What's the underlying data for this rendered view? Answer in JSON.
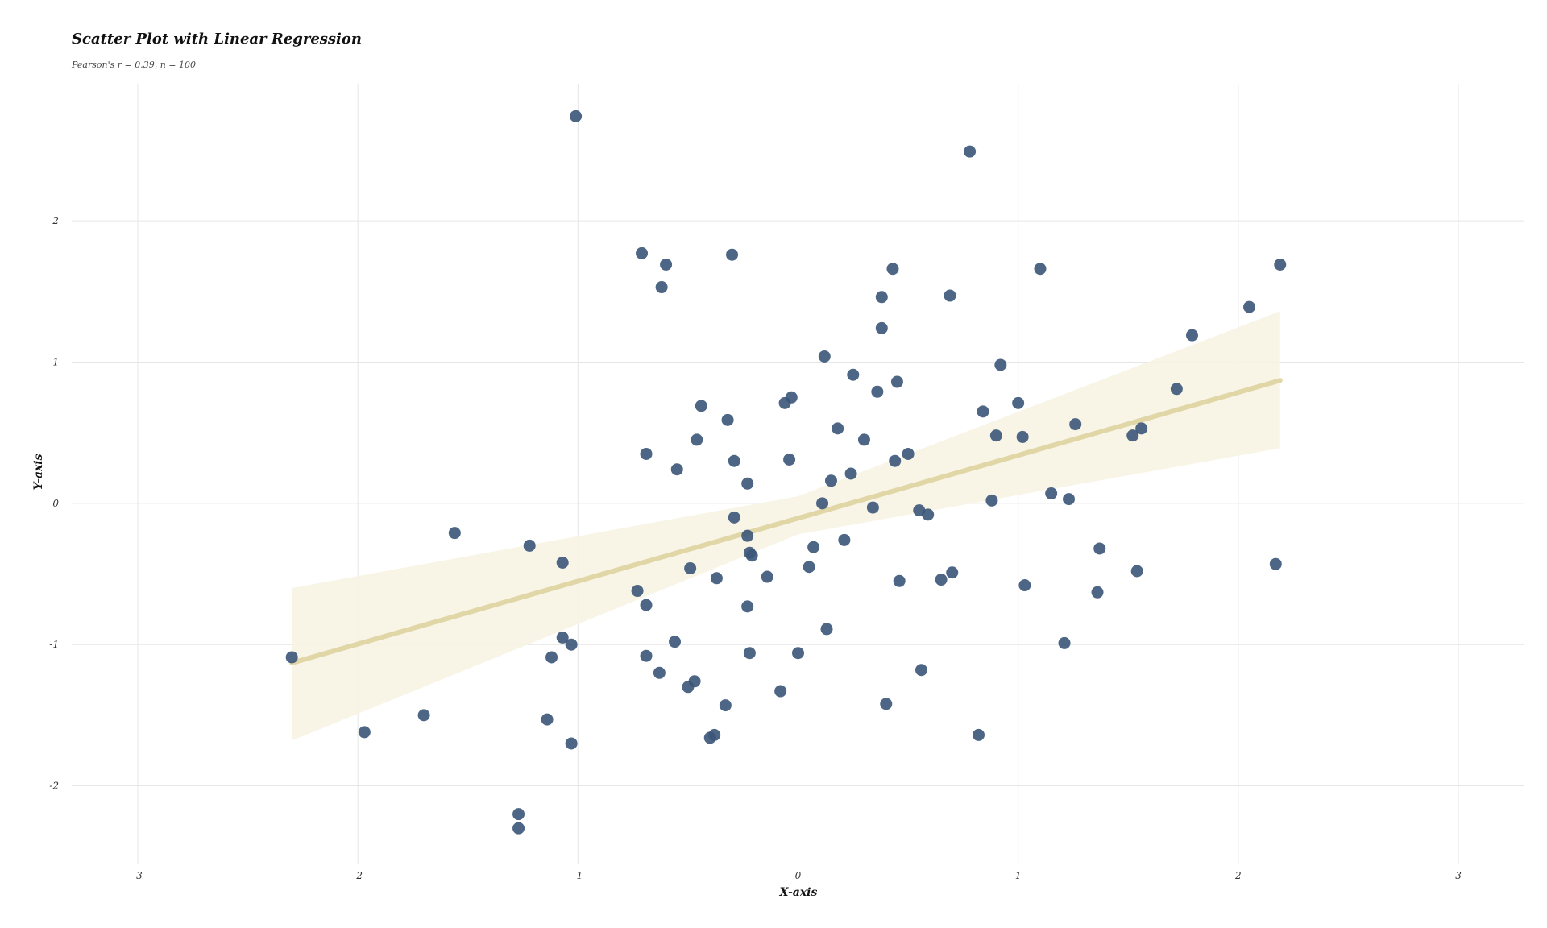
{
  "chart_data": {
    "type": "scatter",
    "title": "Scatter Plot with Linear Regression",
    "subtitle": "Pearson's r = 0.39, n = 100",
    "xlabel": "X-axis",
    "ylabel": "Y-axis",
    "xlim": [
      -3.3,
      3.3
    ],
    "ylim": [
      -2.55,
      2.97
    ],
    "xticks": [
      -3,
      -2,
      -1,
      0,
      1,
      2,
      3
    ],
    "yticks": [
      -2,
      -1,
      0,
      1,
      2
    ],
    "grid": true,
    "colors": {
      "points": "#3b5578",
      "regression_line": "#e0d6a6",
      "confidence_band": "#f7f3e3"
    },
    "regression": {
      "x_range": [
        -2.3,
        2.19
      ],
      "line": [
        [
          -2.3,
          -1.13
        ],
        [
          2.19,
          0.87
        ]
      ],
      "band_upper": [
        [
          -2.3,
          -0.6
        ],
        [
          0.0,
          0.05
        ],
        [
          2.19,
          1.36
        ]
      ],
      "band_lower": [
        [
          -2.3,
          -1.68
        ],
        [
          0.0,
          -0.22
        ],
        [
          2.19,
          0.39
        ]
      ]
    },
    "points": [
      [
        -1.01,
        2.74
      ],
      [
        0.78,
        2.49
      ],
      [
        -0.71,
        1.77
      ],
      [
        -0.3,
        1.76
      ],
      [
        -0.6,
        1.69
      ],
      [
        -0.62,
        1.53
      ],
      [
        0.43,
        1.66
      ],
      [
        1.1,
        1.66
      ],
      [
        2.19,
        1.69
      ],
      [
        0.38,
        1.46
      ],
      [
        0.69,
        1.47
      ],
      [
        2.05,
        1.39
      ],
      [
        0.38,
        1.24
      ],
      [
        1.79,
        1.19
      ],
      [
        0.12,
        1.04
      ],
      [
        0.25,
        0.91
      ],
      [
        0.92,
        0.98
      ],
      [
        0.45,
        0.86
      ],
      [
        0.36,
        0.79
      ],
      [
        1.72,
        0.81
      ],
      [
        -0.03,
        0.75
      ],
      [
        -0.06,
        0.71
      ],
      [
        -0.44,
        0.69
      ],
      [
        -0.32,
        0.59
      ],
      [
        0.84,
        0.65
      ],
      [
        1.0,
        0.71
      ],
      [
        0.18,
        0.53
      ],
      [
        0.3,
        0.45
      ],
      [
        0.9,
        0.48
      ],
      [
        1.02,
        0.47
      ],
      [
        1.26,
        0.56
      ],
      [
        1.52,
        0.48
      ],
      [
        1.56,
        0.53
      ],
      [
        -0.46,
        0.45
      ],
      [
        -0.69,
        0.35
      ],
      [
        0.5,
        0.35
      ],
      [
        0.44,
        0.3
      ],
      [
        -0.04,
        0.31
      ],
      [
        -0.29,
        0.3
      ],
      [
        -0.55,
        0.24
      ],
      [
        0.24,
        0.21
      ],
      [
        0.15,
        0.16
      ],
      [
        -0.23,
        0.14
      ],
      [
        1.15,
        0.07
      ],
      [
        1.23,
        0.03
      ],
      [
        0.11,
        0.0
      ],
      [
        0.88,
        0.02
      ],
      [
        -1.56,
        -0.21
      ],
      [
        0.34,
        -0.03
      ],
      [
        0.55,
        -0.05
      ],
      [
        0.59,
        -0.08
      ],
      [
        -0.29,
        -0.1
      ],
      [
        -1.22,
        -0.3
      ],
      [
        -0.23,
        -0.23
      ],
      [
        0.21,
        -0.26
      ],
      [
        0.07,
        -0.31
      ],
      [
        -0.22,
        -0.35
      ],
      [
        -0.21,
        -0.37
      ],
      [
        1.37,
        -0.32
      ],
      [
        -1.07,
        -0.42
      ],
      [
        -0.49,
        -0.46
      ],
      [
        0.05,
        -0.45
      ],
      [
        2.17,
        -0.43
      ],
      [
        0.7,
        -0.49
      ],
      [
        1.54,
        -0.48
      ],
      [
        -0.37,
        -0.53
      ],
      [
        -0.14,
        -0.52
      ],
      [
        0.46,
        -0.55
      ],
      [
        0.65,
        -0.54
      ],
      [
        1.03,
        -0.58
      ],
      [
        -0.73,
        -0.62
      ],
      [
        1.36,
        -0.63
      ],
      [
        -0.69,
        -0.72
      ],
      [
        -0.23,
        -0.73
      ],
      [
        0.13,
        -0.89
      ],
      [
        -1.07,
        -0.95
      ],
      [
        -1.03,
        -1.0
      ],
      [
        -0.56,
        -0.98
      ],
      [
        1.21,
        -0.99
      ],
      [
        -2.3,
        -1.09
      ],
      [
        -1.12,
        -1.09
      ],
      [
        -0.69,
        -1.08
      ],
      [
        -0.22,
        -1.06
      ],
      [
        0.0,
        -1.06
      ],
      [
        -0.63,
        -1.2
      ],
      [
        0.56,
        -1.18
      ],
      [
        -0.47,
        -1.26
      ],
      [
        -0.5,
        -1.3
      ],
      [
        -0.08,
        -1.33
      ],
      [
        -0.33,
        -1.43
      ],
      [
        0.4,
        -1.42
      ],
      [
        -1.7,
        -1.5
      ],
      [
        -1.14,
        -1.53
      ],
      [
        -1.97,
        -1.62
      ],
      [
        -0.38,
        -1.64
      ],
      [
        -0.4,
        -1.66
      ],
      [
        0.82,
        -1.64
      ],
      [
        -1.03,
        -1.7
      ],
      [
        -1.27,
        -2.2
      ],
      [
        -1.27,
        -2.3
      ]
    ]
  }
}
